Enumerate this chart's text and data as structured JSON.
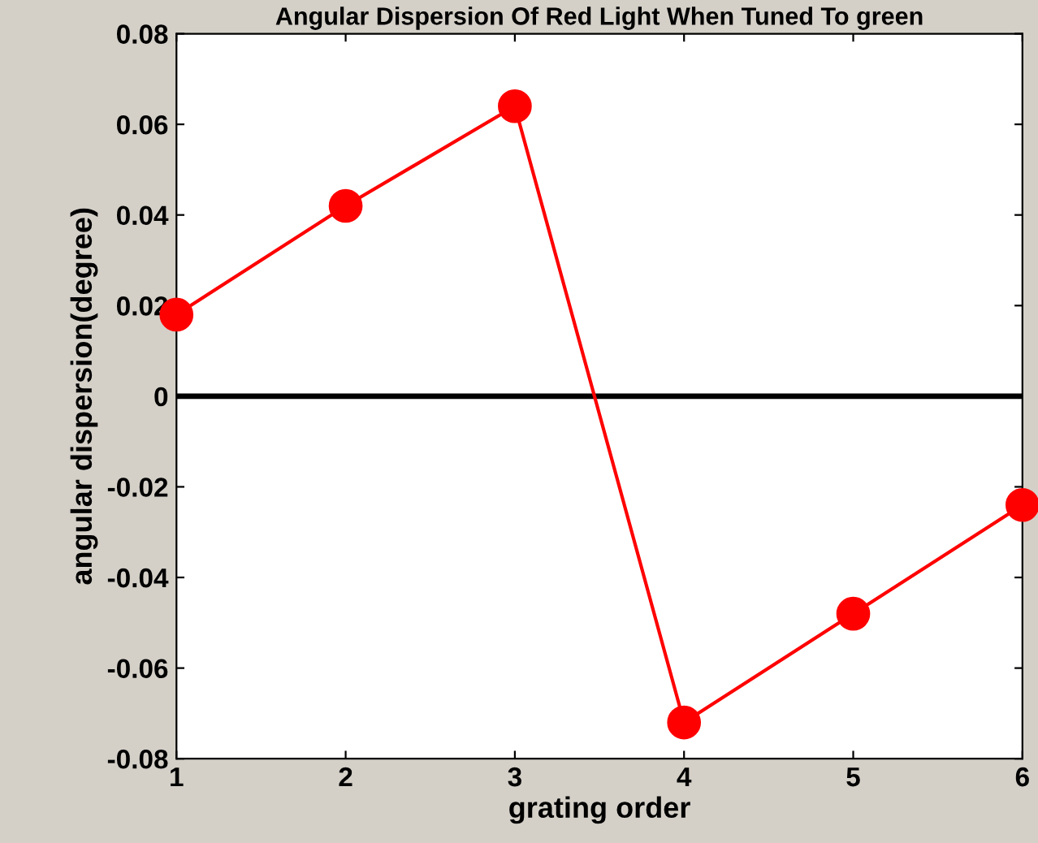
{
  "chart_data": {
    "type": "line",
    "title": "Angular Dispersion Of Red Light When Tuned To green",
    "xlabel": "grating order",
    "ylabel": "angular dispersion(degree)",
    "x": [
      1,
      2,
      3,
      4,
      5,
      6
    ],
    "series": [
      {
        "color": "#ff0000",
        "values": [
          0.018,
          0.042,
          0.064,
          -0.072,
          -0.048,
          -0.024
        ]
      }
    ],
    "xlim": [
      1,
      6
    ],
    "xticks": [
      1,
      2,
      3,
      4,
      5,
      6
    ],
    "ylim": [
      -0.08,
      0.08
    ],
    "yticks": [
      -0.08,
      -0.06,
      -0.04,
      -0.02,
      0,
      0.02,
      0.04,
      0.06,
      0.08
    ],
    "ref_lines": [
      {
        "axis": "y",
        "value": 0,
        "color": "#000000"
      }
    ],
    "marker": "circle",
    "line_style": "solid",
    "grid": false,
    "legend": false
  }
}
